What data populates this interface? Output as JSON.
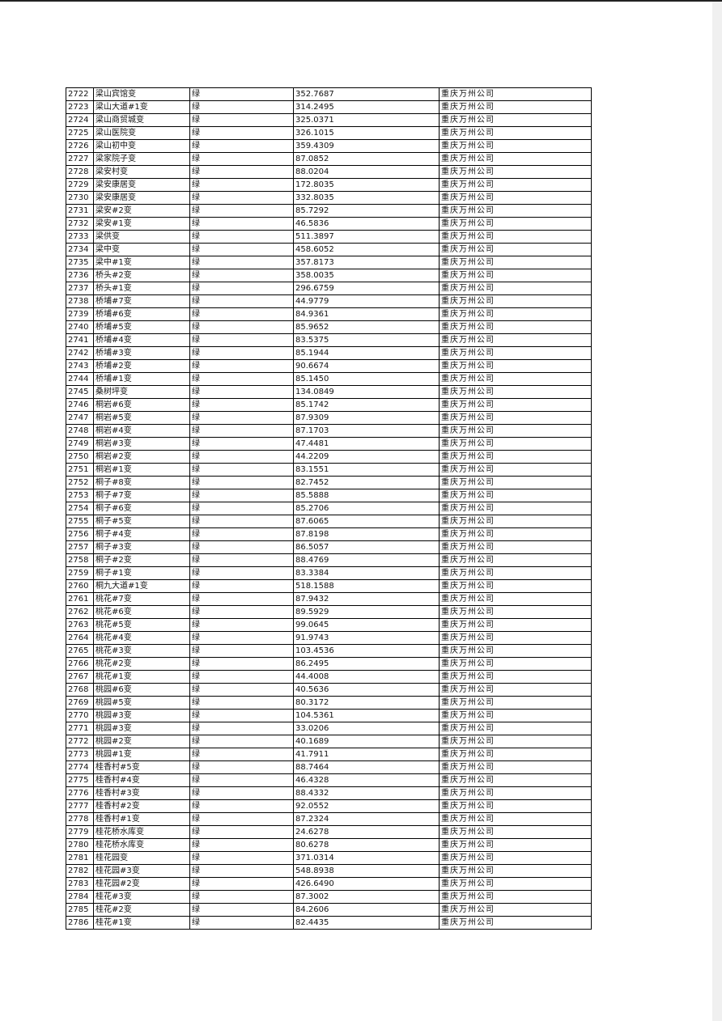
{
  "table": {
    "rows": [
      [
        "2722",
        "梁山宾馆变",
        "绿",
        "352.7687",
        "重庆万州公司"
      ],
      [
        "2723",
        "梁山大道#1变",
        "绿",
        "314.2495",
        "重庆万州公司"
      ],
      [
        "2724",
        "梁山商贸城变",
        "绿",
        "325.0371",
        "重庆万州公司"
      ],
      [
        "2725",
        "梁山医院变",
        "绿",
        "326.1015",
        "重庆万州公司"
      ],
      [
        "2726",
        "梁山初中变",
        "绿",
        "359.4309",
        "重庆万州公司"
      ],
      [
        "2727",
        "梁家院子变",
        "绿",
        "87.0852",
        "重庆万州公司"
      ],
      [
        "2728",
        "梁安村变",
        "绿",
        "88.0204",
        "重庆万州公司"
      ],
      [
        "2729",
        "梁安康居变",
        "绿",
        "172.8035",
        "重庆万州公司"
      ],
      [
        "2730",
        "梁安康居变",
        "绿",
        "332.8035",
        "重庆万州公司"
      ],
      [
        "2731",
        "梁安#2变",
        "绿",
        "85.7292",
        "重庆万州公司"
      ],
      [
        "2732",
        "梁安#1变",
        "绿",
        "46.5836",
        "重庆万州公司"
      ],
      [
        "2733",
        "梁供变",
        "绿",
        "511.3897",
        "重庆万州公司"
      ],
      [
        "2734",
        "梁中变",
        "绿",
        "458.6052",
        "重庆万州公司"
      ],
      [
        "2735",
        "梁中#1变",
        "绿",
        "357.8173",
        "重庆万州公司"
      ],
      [
        "2736",
        "桥头#2变",
        "绿",
        "358.0035",
        "重庆万州公司"
      ],
      [
        "2737",
        "桥头#1变",
        "绿",
        "296.6759",
        "重庆万州公司"
      ],
      [
        "2738",
        "桥埔#7变",
        "绿",
        "44.9779",
        "重庆万州公司"
      ],
      [
        "2739",
        "桥埔#6变",
        "绿",
        "84.9361",
        "重庆万州公司"
      ],
      [
        "2740",
        "桥埔#5变",
        "绿",
        "85.9652",
        "重庆万州公司"
      ],
      [
        "2741",
        "桥埔#4变",
        "绿",
        "83.5375",
        "重庆万州公司"
      ],
      [
        "2742",
        "桥埔#3变",
        "绿",
        "85.1944",
        "重庆万州公司"
      ],
      [
        "2743",
        "桥埔#2变",
        "绿",
        "90.6674",
        "重庆万州公司"
      ],
      [
        "2744",
        "桥埔#1变",
        "绿",
        "85.1450",
        "重庆万州公司"
      ],
      [
        "2745",
        "桑树坪变",
        "绿",
        "134.0849",
        "重庆万州公司"
      ],
      [
        "2746",
        "桐岩#6变",
        "绿",
        "85.1742",
        "重庆万州公司"
      ],
      [
        "2747",
        "桐岩#5变",
        "绿",
        "87.9309",
        "重庆万州公司"
      ],
      [
        "2748",
        "桐岩#4变",
        "绿",
        "87.1703",
        "重庆万州公司"
      ],
      [
        "2749",
        "桐岩#3变",
        "绿",
        "47.4481",
        "重庆万州公司"
      ],
      [
        "2750",
        "桐岩#2变",
        "绿",
        "44.2209",
        "重庆万州公司"
      ],
      [
        "2751",
        "桐岩#1变",
        "绿",
        "83.1551",
        "重庆万州公司"
      ],
      [
        "2752",
        "桐子#8变",
        "绿",
        "82.7452",
        "重庆万州公司"
      ],
      [
        "2753",
        "桐子#7变",
        "绿",
        "85.5888",
        "重庆万州公司"
      ],
      [
        "2754",
        "桐子#6变",
        "绿",
        "85.2706",
        "重庆万州公司"
      ],
      [
        "2755",
        "桐子#5变",
        "绿",
        "87.6065",
        "重庆万州公司"
      ],
      [
        "2756",
        "桐子#4变",
        "绿",
        "87.8198",
        "重庆万州公司"
      ],
      [
        "2757",
        "桐子#3变",
        "绿",
        "86.5057",
        "重庆万州公司"
      ],
      [
        "2758",
        "桐子#2变",
        "绿",
        "88.4769",
        "重庆万州公司"
      ],
      [
        "2759",
        "桐子#1变",
        "绿",
        "83.3384",
        "重庆万州公司"
      ],
      [
        "2760",
        "桐九大道#1变",
        "绿",
        "518.1588",
        "重庆万州公司"
      ],
      [
        "2761",
        "桃花#7变",
        "绿",
        "87.9432",
        "重庆万州公司"
      ],
      [
        "2762",
        "桃花#6变",
        "绿",
        "89.5929",
        "重庆万州公司"
      ],
      [
        "2763",
        "桃花#5变",
        "绿",
        "99.0645",
        "重庆万州公司"
      ],
      [
        "2764",
        "桃花#4变",
        "绿",
        "91.9743",
        "重庆万州公司"
      ],
      [
        "2765",
        "桃花#3变",
        "绿",
        "103.4536",
        "重庆万州公司"
      ],
      [
        "2766",
        "桃花#2变",
        "绿",
        "86.2495",
        "重庆万州公司"
      ],
      [
        "2767",
        "桃花#1变",
        "绿",
        "44.4008",
        "重庆万州公司"
      ],
      [
        "2768",
        "桃园#6变",
        "绿",
        "40.5636",
        "重庆万州公司"
      ],
      [
        "2769",
        "桃园#5变",
        "绿",
        "80.3172",
        "重庆万州公司"
      ],
      [
        "2770",
        "桃园#3变",
        "绿",
        "104.5361",
        "重庆万州公司"
      ],
      [
        "2771",
        "桃园#3变",
        "绿",
        "33.0206",
        "重庆万州公司"
      ],
      [
        "2772",
        "桃园#2变",
        "绿",
        "40.1689",
        "重庆万州公司"
      ],
      [
        "2773",
        "桃园#1变",
        "绿",
        "41.7911",
        "重庆万州公司"
      ],
      [
        "2774",
        "桂香村#5变",
        "绿",
        "88.7464",
        "重庆万州公司"
      ],
      [
        "2775",
        "桂香村#4变",
        "绿",
        "46.4328",
        "重庆万州公司"
      ],
      [
        "2776",
        "桂香村#3变",
        "绿",
        "88.4332",
        "重庆万州公司"
      ],
      [
        "2777",
        "桂香村#2变",
        "绿",
        "92.0552",
        "重庆万州公司"
      ],
      [
        "2778",
        "桂香村#1变",
        "绿",
        "87.2324",
        "重庆万州公司"
      ],
      [
        "2779",
        "桂花桥水库变",
        "绿",
        "24.6278",
        "重庆万州公司"
      ],
      [
        "2780",
        "桂花桥水库变",
        "绿",
        "80.6278",
        "重庆万州公司"
      ],
      [
        "2781",
        "桂花园变",
        "绿",
        "371.0314",
        "重庆万州公司"
      ],
      [
        "2782",
        "桂花园#3变",
        "绿",
        "548.8938",
        "重庆万州公司"
      ],
      [
        "2783",
        "桂花园#2变",
        "绿",
        "426.6490",
        "重庆万州公司"
      ],
      [
        "2784",
        "桂花#3变",
        "绿",
        "87.3002",
        "重庆万州公司"
      ],
      [
        "2785",
        "桂花#2变",
        "绿",
        "84.2606",
        "重庆万州公司"
      ],
      [
        "2786",
        "桂花#1变",
        "绿",
        "82.4435",
        "重庆万州公司"
      ]
    ]
  }
}
